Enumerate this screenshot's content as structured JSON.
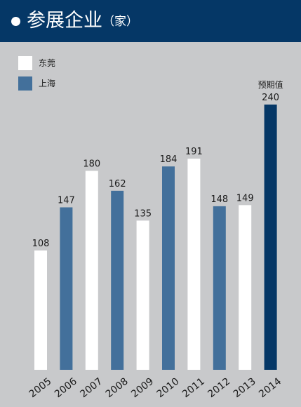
{
  "header": {
    "title": "参展企业",
    "unit": "（家）"
  },
  "legend": [
    {
      "label": "东莞",
      "color": "#ffffff"
    },
    {
      "label": "上海",
      "color": "#43709b"
    }
  ],
  "colors": {
    "background": "#c8c9cb",
    "header": "#053766",
    "dongguan": "#ffffff",
    "shanghai": "#43709b",
    "forecast": "#053766"
  },
  "chart_data": {
    "type": "bar",
    "categories": [
      "2005",
      "2006",
      "2007",
      "2008",
      "2009",
      "2010",
      "2011",
      "2012",
      "2013",
      "2014"
    ],
    "values": [
      108,
      147,
      180,
      162,
      135,
      184,
      191,
      148,
      149,
      240
    ],
    "series_by_bar": [
      "东莞",
      "上海",
      "东莞",
      "上海",
      "东莞",
      "上海",
      "东莞",
      "上海",
      "东莞",
      "预期值"
    ],
    "annotation": {
      "category": "2014",
      "label": "预期值"
    },
    "ylim": [
      0,
      240
    ],
    "grid": false,
    "legend_position": "top-left"
  }
}
